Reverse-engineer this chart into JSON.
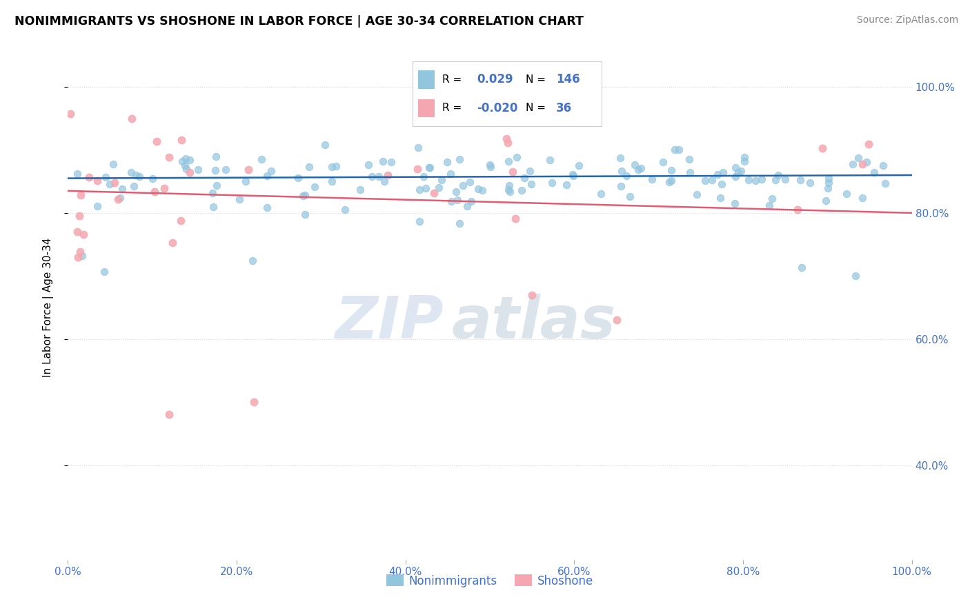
{
  "title": "NONIMMIGRANTS VS SHOSHONE IN LABOR FORCE | AGE 30-34 CORRELATION CHART",
  "source_text": "Source: ZipAtlas.com",
  "ylabel": "In Labor Force | Age 30-34",
  "xlim": [
    0.0,
    1.0
  ],
  "ylim": [
    0.25,
    1.05
  ],
  "blue_color": "#92c5de",
  "pink_color": "#f4a7b0",
  "blue_line_color": "#2166ac",
  "pink_line_color": "#e05c72",
  "r_blue": 0.029,
  "n_blue": 146,
  "r_pink": -0.02,
  "n_pink": 36,
  "watermark_zip": "ZIP",
  "watermark_atlas": "atlas",
  "legend_label_blue": "Nonimmigrants",
  "legend_label_pink": "Shoshone",
  "axis_text_color": "#4472c4",
  "grid_color": "#d8d8d8",
  "blue_trend_start": 0.855,
  "blue_trend_end": 0.86,
  "pink_trend_start": 0.835,
  "pink_trend_end": 0.8
}
